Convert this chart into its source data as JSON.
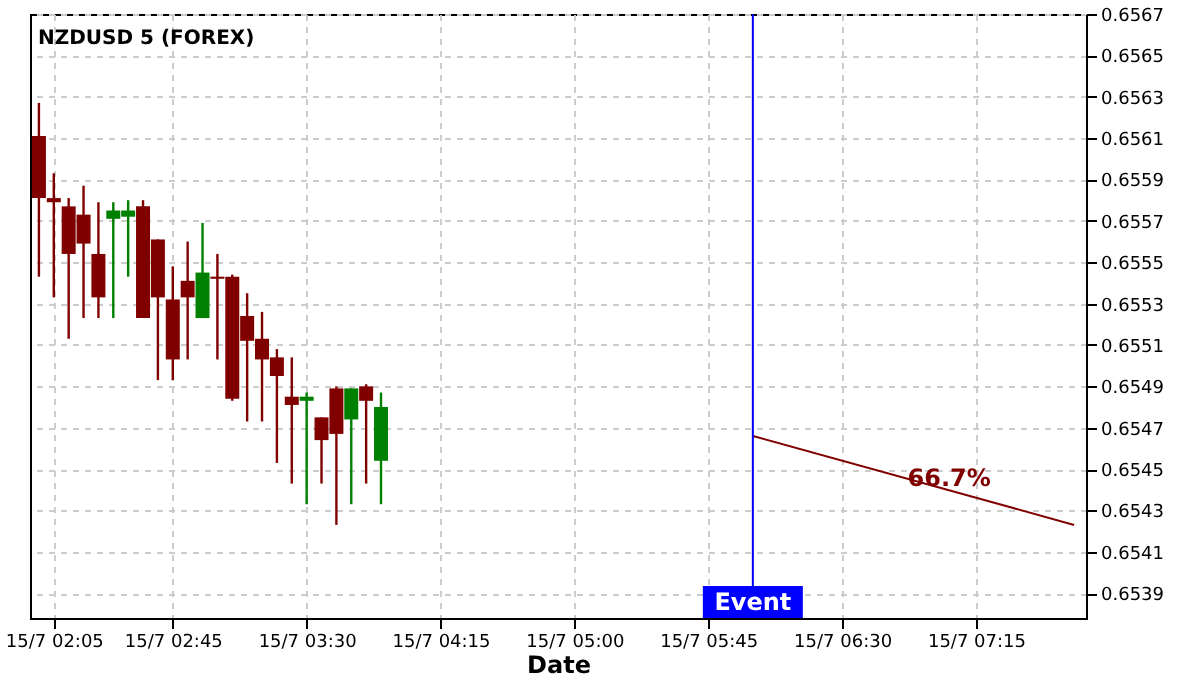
{
  "chart_data": {
    "type": "candlestick",
    "title": "NZDUSD 5 (FOREX)",
    "xlabel": "Date",
    "x": [
      "--07-15T02:00",
      "--07-15T02:05",
      "--07-15T02:10",
      "--07-15T02:15",
      "--07-15T02:20",
      "--07-15T02:25",
      "--07-15T02:30",
      "--07-15T02:35",
      "--07-15T02:40",
      "--07-15T02:45",
      "--07-15T02:50",
      "--07-15T02:55",
      "--07-15T03:00",
      "--07-15T03:05",
      "--07-15T03:10",
      "--07-15T03:15",
      "--07-15T03:20",
      "--07-15T03:25",
      "--07-15T03:30",
      "--07-15T03:35",
      "--07-15T03:40",
      "--07-15T03:45",
      "--07-15T03:50",
      "--07-15T03:55"
    ],
    "ohlc": [
      [
        0.65611,
        0.65627,
        0.65543,
        0.65581
      ],
      [
        0.65581,
        0.65593,
        0.65533,
        0.65579
      ],
      [
        0.65577,
        0.65581,
        0.65513,
        0.65554
      ],
      [
        0.65573,
        0.65587,
        0.65523,
        0.65559
      ],
      [
        0.65554,
        0.65579,
        0.65523,
        0.65533
      ],
      [
        0.65571,
        0.65579,
        0.65523,
        0.65575
      ],
      [
        0.65572,
        0.6558,
        0.65543,
        0.65575
      ],
      [
        0.65577,
        0.6558,
        0.65523,
        0.65523
      ],
      [
        0.65561,
        0.65561,
        0.65493,
        0.65533
      ],
      [
        0.65532,
        0.65548,
        0.65493,
        0.65503
      ],
      [
        0.65541,
        0.6556,
        0.65503,
        0.65533
      ],
      [
        0.65523,
        0.65569,
        0.65523,
        0.65545
      ],
      [
        0.65543,
        0.65554,
        0.65503,
        0.65542
      ],
      [
        0.65543,
        0.65544,
        0.65483,
        0.65484
      ],
      [
        0.65524,
        0.65535,
        0.65473,
        0.65512
      ],
      [
        0.65513,
        0.65526,
        0.65473,
        0.65503
      ],
      [
        0.65504,
        0.65508,
        0.65453,
        0.65495
      ],
      [
        0.65485,
        0.65504,
        0.65443,
        0.65481
      ],
      [
        0.65483,
        0.65487,
        0.65433,
        0.65485
      ],
      [
        0.65475,
        0.65475,
        0.65443,
        0.65464
      ],
      [
        0.65489,
        0.6549,
        0.65423,
        0.65467
      ],
      [
        0.65474,
        0.65489,
        0.65433,
        0.65489
      ],
      [
        0.6549,
        0.65491,
        0.65443,
        0.65483
      ],
      [
        0.65454,
        0.65487,
        0.65433,
        0.6548
      ]
    ],
    "colors": [
      "#800000",
      "#800000",
      "#800000",
      "#800000",
      "#800000",
      "#008000",
      "#008000",
      "#800000",
      "#800000",
      "#800000",
      "#800000",
      "#008000",
      "#800000",
      "#800000",
      "#800000",
      "#800000",
      "#800000",
      "#800000",
      "#008000",
      "#800000",
      "#800000",
      "#008000",
      "#800000",
      "#008000"
    ],
    "series": [
      {
        "type": "line",
        "color": "#800000",
        "x": [
          "--07-15T06:00",
          "--07-15T07:48"
        ],
        "values": [
          0.65466,
          0.65423
        ]
      }
    ],
    "annotations": [
      {
        "text": "66.7%",
        "x": "--07-15T07:06",
        "y": 0.6544
      }
    ],
    "ref_lines": [
      {
        "axis": "x",
        "value": "--07-15T06:00",
        "label": "Event",
        "color": "#0000ff"
      }
    ],
    "xlim": [
      "--07-15T01:57",
      "--07-15T07:52"
    ],
    "xticks": [
      {
        "value": "--07-15T02:05",
        "label": "15/7 02:05"
      },
      {
        "value": "--07-15T02:45",
        "label": "15/7 02:45"
      },
      {
        "value": "--07-15T03:30",
        "label": "15/7 03:30"
      },
      {
        "value": "--07-15T04:15",
        "label": "15/7 04:15"
      },
      {
        "value": "--07-15T05:00",
        "label": "15/7 05:00"
      },
      {
        "value": "--07-15T05:45",
        "label": "15/7 05:45"
      },
      {
        "value": "--07-15T06:30",
        "label": "15/7 06:30"
      },
      {
        "value": "--07-15T07:15",
        "label": "15/7 07:15"
      }
    ],
    "ylim": [
      0.65378,
      0.6567
    ],
    "yticks": [
      0.6539,
      0.6541,
      0.6543,
      0.6545,
      0.6547,
      0.6549,
      0.6551,
      0.6553,
      0.6555,
      0.6557,
      0.6559,
      0.6561,
      0.6563,
      0.6565,
      0.6567
    ],
    "grid": true
  }
}
